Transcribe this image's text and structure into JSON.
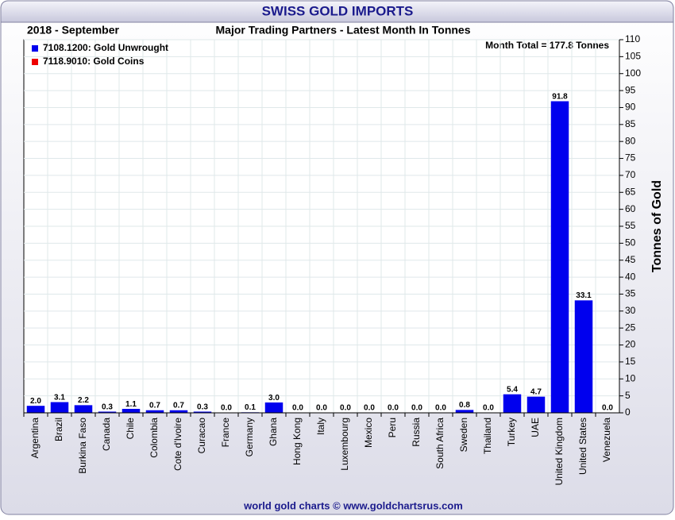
{
  "chart_data": {
    "type": "bar",
    "title": "SWISS GOLD IMPORTS",
    "period": "2018 - September",
    "subtitle": "Major Trading Partners - Latest Month In Tonnes",
    "annotation": "Month Total = 177.8 Tonnes",
    "y_label": "Tonnes of Gold",
    "source": "world gold charts © www.goldchartsrus.com",
    "categories": [
      "Argentina",
      "Brazil",
      "Burkina Faso",
      "Canada",
      "Chile",
      "Colombia",
      "Cote d'Ivoire",
      "Curacao",
      "France",
      "Germany",
      "Ghana",
      "Hong Kong",
      "Italy",
      "Luxembourg",
      "Mexico",
      "Peru",
      "Russia",
      "South Africa",
      "Sweden",
      "Thailand",
      "Turkey",
      "UAE",
      "United Kingdom",
      "United States",
      "Venezuela"
    ],
    "series": [
      {
        "name": "7108.1200: Gold Unwrought",
        "color": "#0000ee",
        "values": [
          2.0,
          3.1,
          2.2,
          0.3,
          1.1,
          0.7,
          0.7,
          0.3,
          0.0,
          0.1,
          3.0,
          0.0,
          0.0,
          0.0,
          0.0,
          0.0,
          0.0,
          0.0,
          0.8,
          0.0,
          5.4,
          4.7,
          91.8,
          33.1,
          0.0
        ],
        "value_labels": [
          "2.0",
          "3.1",
          "2.2",
          "0.3",
          "1.1",
          "0.7",
          "0.7",
          "0.3",
          "0.0",
          "0.1",
          "3.0",
          "0.0",
          "0.0",
          "0.0",
          "0.0",
          "0.0",
          "0.0",
          "0.0",
          "0.8",
          "0.0",
          "5.4",
          "4.7",
          "91.8",
          "33.1",
          "0.0"
        ]
      },
      {
        "name": "7118.9010: Gold Coins",
        "color": "#ee0000",
        "values": [
          0,
          0,
          0,
          0,
          0,
          0,
          0,
          0,
          0,
          0,
          0,
          0,
          0,
          0,
          0,
          0,
          0,
          0,
          0,
          0,
          0,
          0,
          0,
          0,
          0
        ]
      }
    ],
    "ylim": [
      0,
      110
    ],
    "yticks": [
      0,
      5,
      10,
      15,
      20,
      25,
      30,
      35,
      40,
      45,
      50,
      55,
      60,
      65,
      70,
      75,
      80,
      85,
      90,
      95,
      100,
      105,
      110
    ],
    "grid": true,
    "legend": "top-left"
  }
}
